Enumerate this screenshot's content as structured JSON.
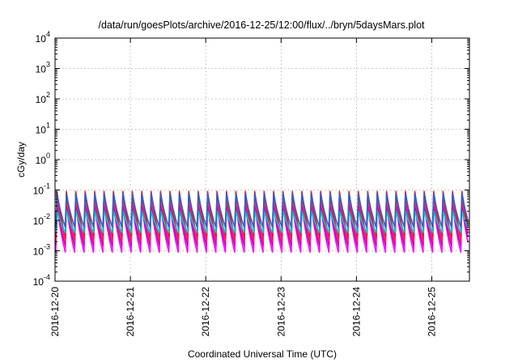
{
  "chart_data": {
    "type": "line",
    "title": "/data/run/goesPlots/archive/2016-12-25/12:00/flux/../bryn/5daysMars.plot",
    "xlabel": "Coordinated Universal Time (UTC)",
    "ylabel": "cGy/day",
    "yscale": "log",
    "ylim": [
      0.0001,
      10000
    ],
    "xlim": [
      "2016-12-20 00:00",
      "2016-12-25 12:00"
    ],
    "grid": true,
    "legend": "none",
    "y_ticks": [
      {
        "base": "10",
        "exp": "4",
        "value": 10000
      },
      {
        "base": "10",
        "exp": "3",
        "value": 1000
      },
      {
        "base": "10",
        "exp": "2",
        "value": 100
      },
      {
        "base": "10",
        "exp": "1",
        "value": 10
      },
      {
        "base": "10",
        "exp": "0",
        "value": 1
      },
      {
        "base": "10",
        "exp": "-1",
        "value": 0.1
      },
      {
        "base": "10",
        "exp": "-2",
        "value": 0.01
      },
      {
        "base": "10",
        "exp": "-3",
        "value": 0.001
      },
      {
        "base": "10",
        "exp": "-4",
        "value": 0.0001
      }
    ],
    "x_ticks": [
      {
        "label": "2016-12-20",
        "value": "2016-12-20"
      },
      {
        "label": "2016-12-21",
        "value": "2016-12-21"
      },
      {
        "label": "2016-12-22",
        "value": "2016-12-22"
      },
      {
        "label": "2016-12-23",
        "value": "2016-12-23"
      },
      {
        "label": "2016-12-24",
        "value": "2016-12-24"
      },
      {
        "label": "2016-12-25",
        "value": "2016-12-25"
      }
    ],
    "oscillation_cycles_per_day": 8,
    "series": [
      {
        "color": "#ff00ff",
        "peak": 0.03,
        "trough": 0.0009
      },
      {
        "color": "#c000c0",
        "peak": 0.032,
        "trough": 0.0015
      },
      {
        "color": "#ff2060",
        "peak": 0.06,
        "trough": 0.002
      },
      {
        "color": "#e02020",
        "peak": 0.09,
        "trough": 0.003
      },
      {
        "color": "#20a0ff",
        "peak": 0.02,
        "trough": 0.004
      },
      {
        "color": "#00c8c8",
        "peak": 0.02,
        "trough": 0.004
      },
      {
        "color": "#2f5fd0",
        "peak": 0.075,
        "trough": 0.006
      }
    ]
  }
}
